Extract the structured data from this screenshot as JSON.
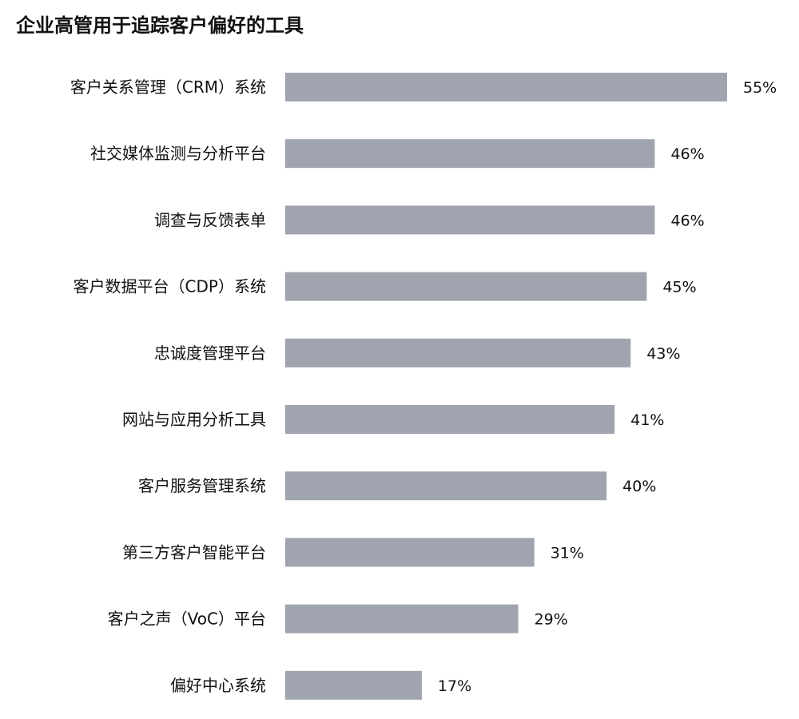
{
  "chart_data": {
    "type": "bar",
    "orientation": "horizontal",
    "title": "企业高管用于追踪客户偏好的工具",
    "categories": [
      "客户关系管理（CRM）系统",
      "社交媒体监测与分析平台",
      "调查与反馈表单",
      "客户数据平台（CDP）系统",
      "忠诚度管理平台",
      "网站与应用分析工具",
      "客户服务管理系统",
      "第三方客户智能平台",
      "客户之声（VoC）平台",
      "偏好中心系统"
    ],
    "values": [
      55,
      46,
      46,
      45,
      43,
      41,
      40,
      31,
      29,
      17
    ],
    "value_labels": [
      "55%",
      "46%",
      "46%",
      "45%",
      "43%",
      "41%",
      "40%",
      "31%",
      "29%",
      "17%"
    ],
    "unit": "%",
    "xlim": [
      0,
      55
    ],
    "grid": false,
    "bar_color": "#a0a4ae"
  }
}
